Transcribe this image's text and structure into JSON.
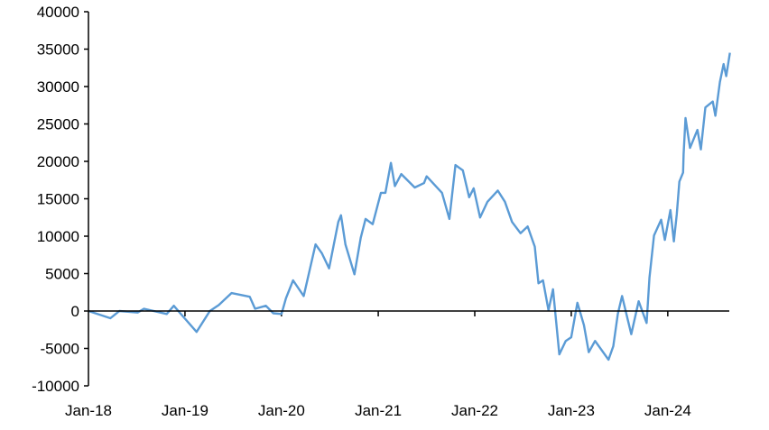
{
  "chart_data": {
    "type": "line",
    "title": "",
    "xlabel": "",
    "ylabel": "",
    "ylim": [
      -10000,
      40000
    ],
    "yticks": [
      "40000",
      "35000",
      "30000",
      "25000",
      "20000",
      "15000",
      "10000",
      "5000",
      "0",
      "-5000",
      "-10000"
    ],
    "ytick_values": [
      40000,
      35000,
      30000,
      25000,
      20000,
      15000,
      10000,
      5000,
      0,
      -5000,
      -10000
    ],
    "xlim": [
      "2018-01-01",
      "2024-08-23"
    ],
    "xticks": [
      "Jan-18",
      "Jan-19",
      "Jan-20",
      "Jan-21",
      "Jan-22",
      "Jan-23",
      "Jan-24"
    ],
    "xtick_dates": [
      "2018-01-01",
      "2019-01-01",
      "2020-01-01",
      "2021-01-01",
      "2022-01-01",
      "2023-01-01",
      "2024-01-01"
    ],
    "grid": false,
    "legend": "none",
    "series": [
      {
        "color": "#5B9BD5",
        "points": [
          [
            "2018-01-01",
            0
          ],
          [
            "2018-03-25",
            -960
          ],
          [
            "2018-04-28",
            0
          ],
          [
            "2018-07-06",
            -200
          ],
          [
            "2018-07-30",
            300
          ],
          [
            "2018-10-24",
            -400
          ],
          [
            "2018-11-20",
            700
          ],
          [
            "2018-12-14",
            -300
          ],
          [
            "2019-02-14",
            -2800
          ],
          [
            "2019-04-05",
            0
          ],
          [
            "2019-05-09",
            800
          ],
          [
            "2019-06-26",
            2400
          ],
          [
            "2019-09-03",
            1900
          ],
          [
            "2019-09-23",
            300
          ],
          [
            "2019-11-03",
            700
          ],
          [
            "2019-12-01",
            -300
          ],
          [
            "2020-01-01",
            -400
          ],
          [
            "2020-01-18",
            1700
          ],
          [
            "2020-02-14",
            4100
          ],
          [
            "2020-03-25",
            2000
          ],
          [
            "2020-05-09",
            8900
          ],
          [
            "2020-06-02",
            7700
          ],
          [
            "2020-06-29",
            5700
          ],
          [
            "2020-08-03",
            11900
          ],
          [
            "2020-08-13",
            12800
          ],
          [
            "2020-08-30",
            8900
          ],
          [
            "2020-10-03",
            4900
          ],
          [
            "2020-10-27",
            9800
          ],
          [
            "2020-11-14",
            12300
          ],
          [
            "2020-12-11",
            11600
          ],
          [
            "2021-01-11",
            15800
          ],
          [
            "2021-01-28",
            15800
          ],
          [
            "2021-02-18",
            19800
          ],
          [
            "2021-03-05",
            16700
          ],
          [
            "2021-03-29",
            18300
          ],
          [
            "2021-05-19",
            16500
          ],
          [
            "2021-06-23",
            17100
          ],
          [
            "2021-07-03",
            18000
          ],
          [
            "2021-08-30",
            15800
          ],
          [
            "2021-09-27",
            12300
          ],
          [
            "2021-10-20",
            19500
          ],
          [
            "2021-11-17",
            18800
          ],
          [
            "2021-12-11",
            15200
          ],
          [
            "2021-12-28",
            16400
          ],
          [
            "2022-01-21",
            12500
          ],
          [
            "2022-02-18",
            14600
          ],
          [
            "2022-03-29",
            16100
          ],
          [
            "2022-04-25",
            14600
          ],
          [
            "2022-05-22",
            11900
          ],
          [
            "2022-06-23",
            10400
          ],
          [
            "2022-07-20",
            11300
          ],
          [
            "2022-08-16",
            8600
          ],
          [
            "2022-08-30",
            3700
          ],
          [
            "2022-09-16",
            4100
          ],
          [
            "2022-10-07",
            100
          ],
          [
            "2022-10-24",
            2900
          ],
          [
            "2022-11-17",
            -5800
          ],
          [
            "2022-12-11",
            -4000
          ],
          [
            "2023-01-01",
            -3500
          ],
          [
            "2023-01-24",
            1100
          ],
          [
            "2023-02-18",
            -1900
          ],
          [
            "2023-03-08",
            -5500
          ],
          [
            "2023-04-01",
            -4000
          ],
          [
            "2023-05-22",
            -6500
          ],
          [
            "2023-06-09",
            -4700
          ],
          [
            "2023-06-26",
            -400
          ],
          [
            "2023-07-12",
            2000
          ],
          [
            "2023-08-16",
            -3100
          ],
          [
            "2023-09-13",
            1300
          ],
          [
            "2023-10-13",
            -1600
          ],
          [
            "2023-10-24",
            4500
          ],
          [
            "2023-11-10",
            10100
          ],
          [
            "2023-12-07",
            12200
          ],
          [
            "2023-12-21",
            9500
          ],
          [
            "2024-01-11",
            13500
          ],
          [
            "2024-01-24",
            9300
          ],
          [
            "2024-02-04",
            12900
          ],
          [
            "2024-02-14",
            17300
          ],
          [
            "2024-02-28",
            18500
          ],
          [
            "2024-03-01",
            21000
          ],
          [
            "2024-03-08",
            25800
          ],
          [
            "2024-03-25",
            21800
          ],
          [
            "2024-04-22",
            24200
          ],
          [
            "2024-05-05",
            21600
          ],
          [
            "2024-05-22",
            27200
          ],
          [
            "2024-06-19",
            28000
          ],
          [
            "2024-06-29",
            26100
          ],
          [
            "2024-07-16",
            30600
          ],
          [
            "2024-07-30",
            33000
          ],
          [
            "2024-08-09",
            31400
          ],
          [
            "2024-08-23",
            34500
          ]
        ]
      }
    ]
  }
}
